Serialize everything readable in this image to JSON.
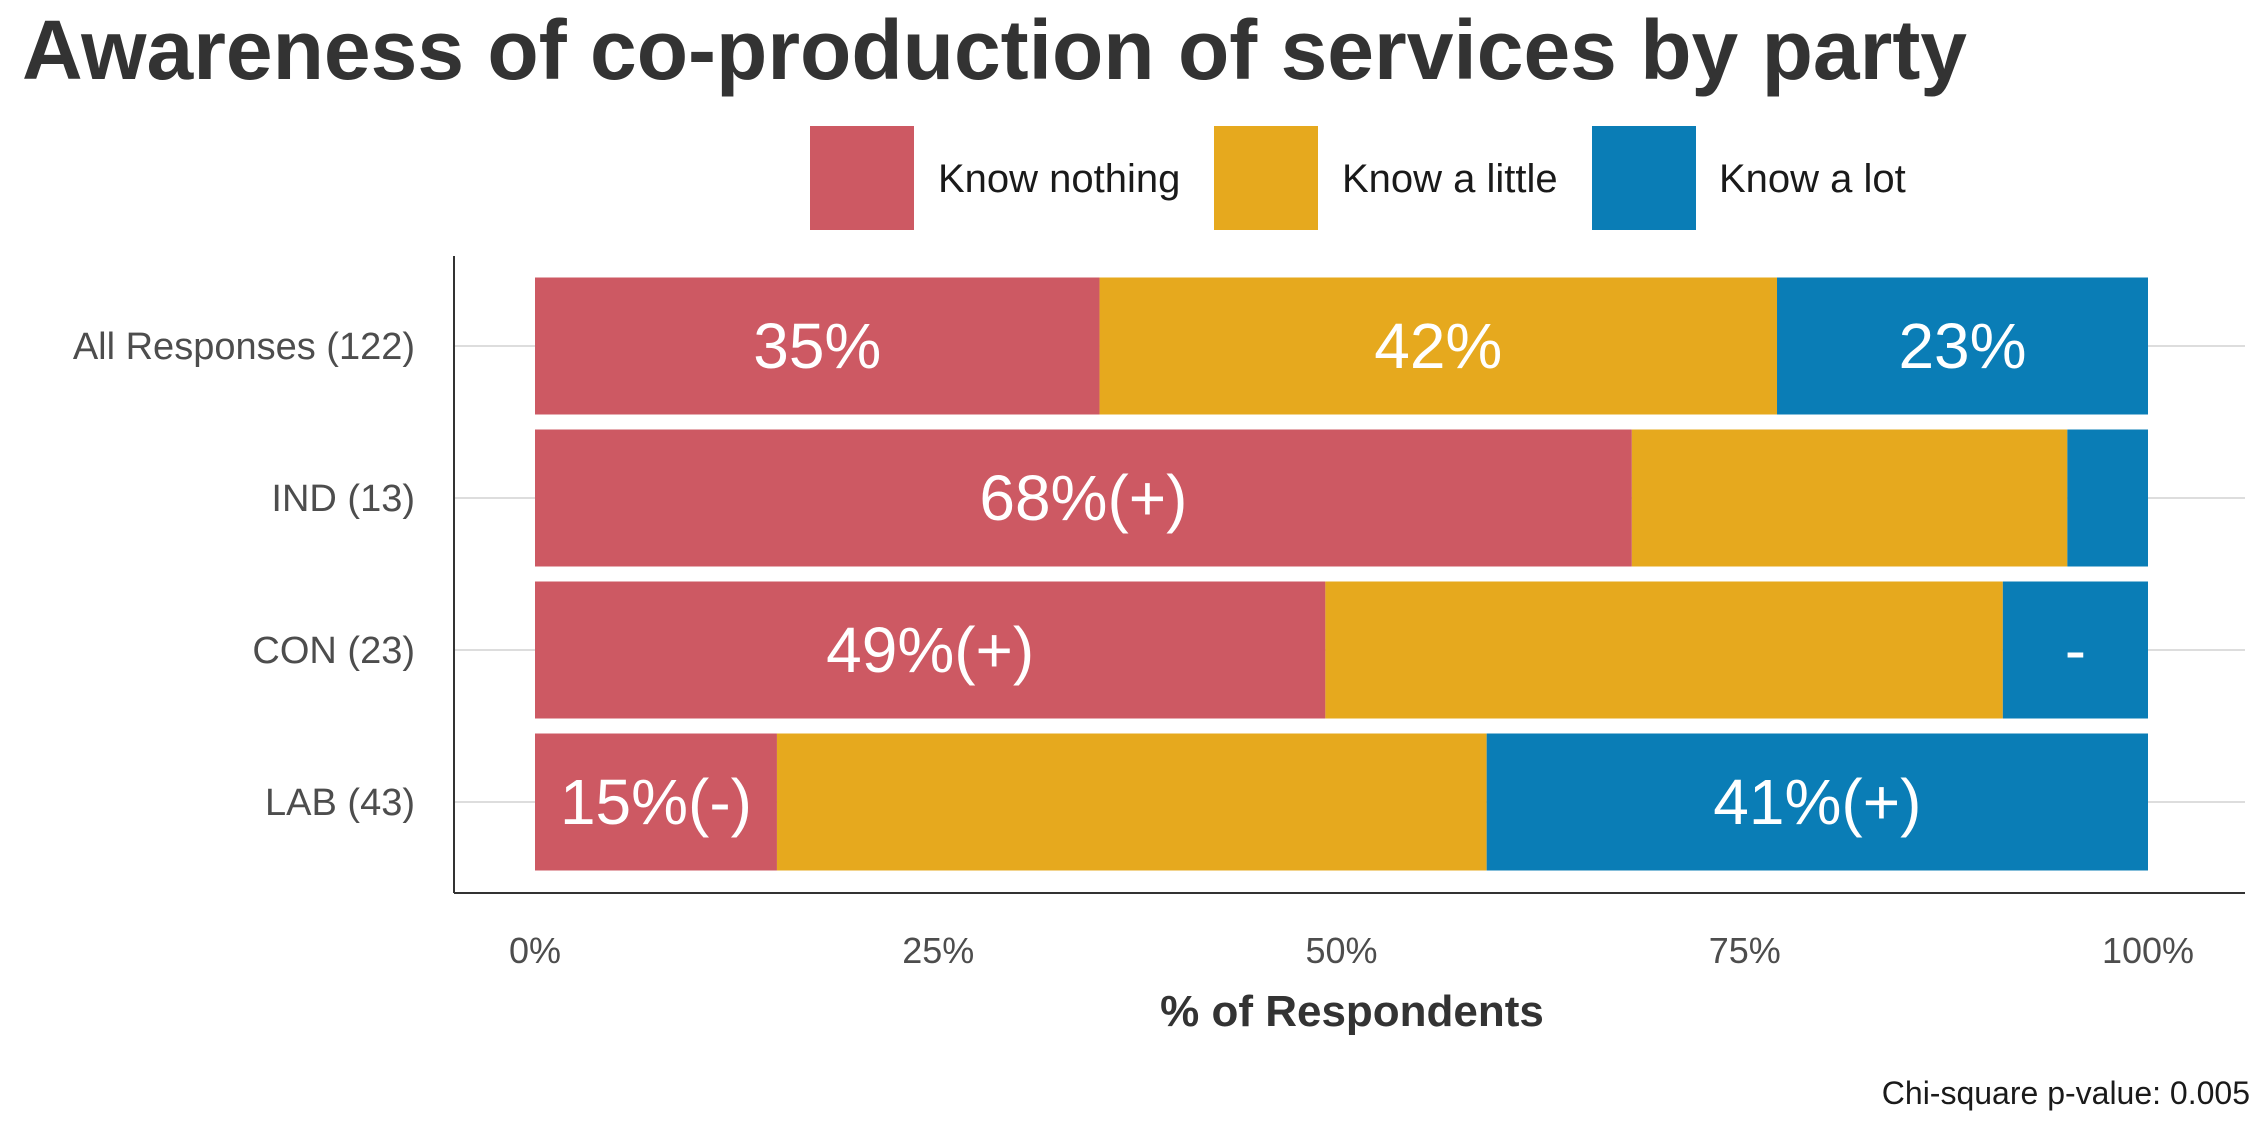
{
  "chart_data": {
    "type": "bar",
    "orientation": "horizontal",
    "stacked": true,
    "title": "Awareness of co-production of services by party",
    "xlabel": "% of Respondents",
    "ylabel": "",
    "xlim": [
      0,
      100
    ],
    "x_ticks": [
      "0%",
      "25%",
      "50%",
      "75%",
      "100%"
    ],
    "grid": "horizontal lines at categories",
    "legend_position": "top",
    "categories": [
      "All Responses (122)",
      "IND (13)",
      "CON (23)",
      "LAB (43)"
    ],
    "series": [
      {
        "name": "Know nothing",
        "color": "#CD5963",
        "values": [
          35,
          68,
          49,
          15
        ],
        "labels": [
          "35%",
          "68%(+)",
          "49%(+)",
          "15%(-)"
        ]
      },
      {
        "name": "Know a little",
        "color": "#E6A91E",
        "values": [
          42,
          27,
          42,
          44
        ],
        "labels": [
          "42%",
          "",
          "",
          ""
        ]
      },
      {
        "name": "Know a lot",
        "color": "#0A7DB6",
        "values": [
          23,
          5,
          9,
          41
        ],
        "labels": [
          "23%",
          "",
          "-",
          "41%(+)"
        ]
      }
    ],
    "footnote": "Chi-square p-value: 0.005"
  }
}
